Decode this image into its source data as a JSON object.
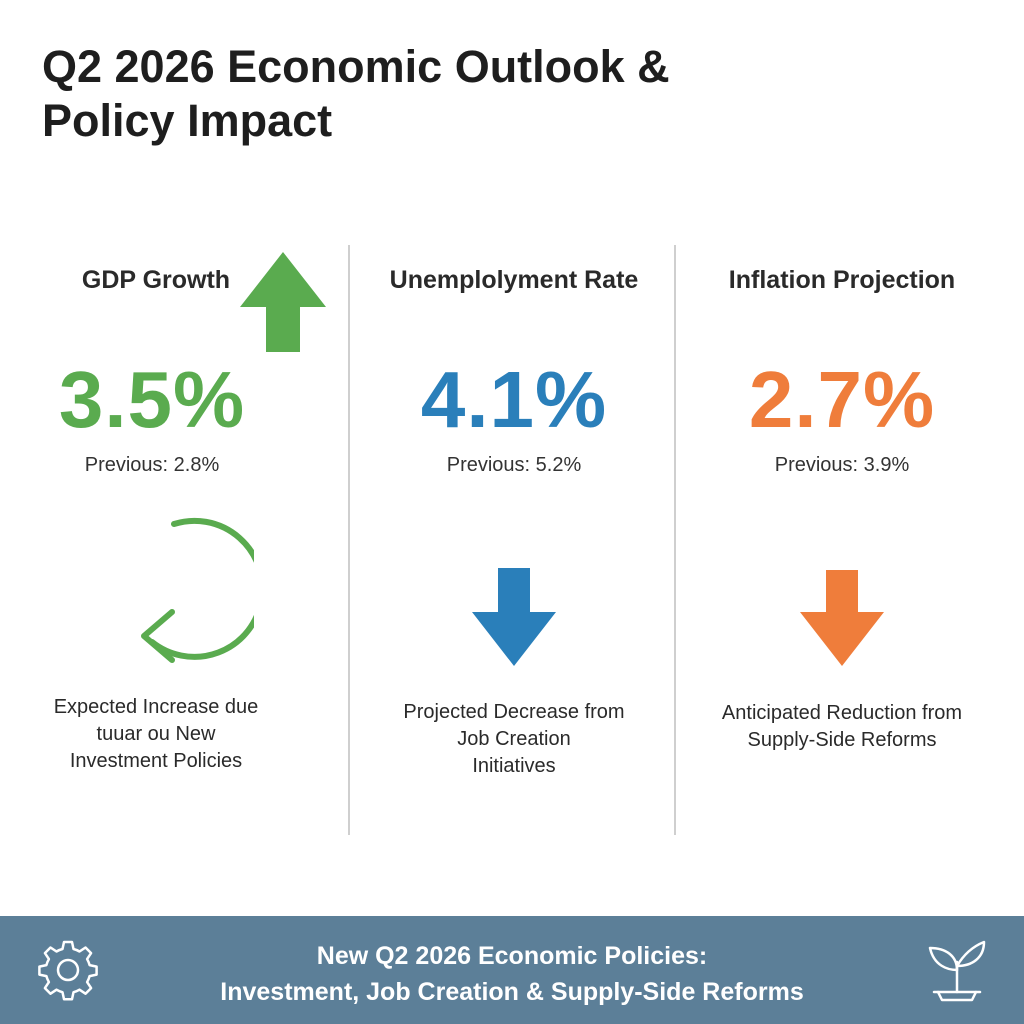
{
  "title": {
    "line1": "Q2 2026 Economic Outlook &",
    "line2": "Policy Impact"
  },
  "columns": [
    {
      "heading": "GDP Growth",
      "value": "3.5%",
      "previous": "Previous: 2.8%",
      "description": [
        "Expected Increase due",
        "tuuar ou New",
        "Investment Policies"
      ],
      "color": "#5aab4f",
      "icons": [
        "up-arrow-icon",
        "circular-arrow-icon"
      ]
    },
    {
      "heading": "Unemplolyment Rate",
      "value": "4.1%",
      "previous": "Previous: 5.2%",
      "description": [
        "Projected Decrease from",
        "Job Creation",
        "Initiatives"
      ],
      "color": "#2a7fba",
      "icons": [
        "down-arrow-icon"
      ]
    },
    {
      "heading": "Inflation Projection",
      "value": "2.7%",
      "previous": "Previous: 3.9%",
      "description": [
        "Anticipated Reduction from",
        "Supply-Side Reforms"
      ],
      "color": "#ef7d3b",
      "icons": [
        "down-arrow-icon"
      ]
    }
  ],
  "footer": {
    "line1": "New Q2 2026 Economic Policies:",
    "line2": "Investment, Job Creation & Supply-Side Reforms",
    "background": "#5c7f98",
    "icons": [
      "gear-icon",
      "sprout-icon"
    ]
  }
}
